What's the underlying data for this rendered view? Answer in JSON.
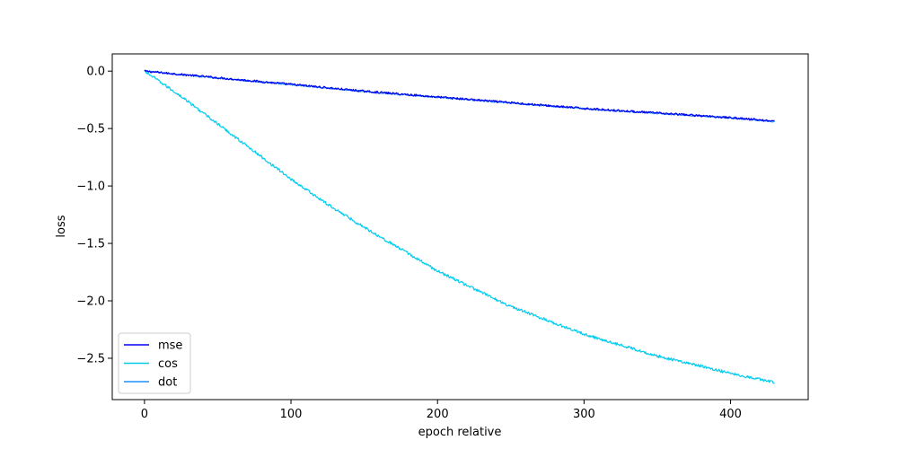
{
  "chart_data": {
    "type": "line",
    "title": "",
    "xlabel": "epoch relative",
    "ylabel": "loss",
    "xlim": [
      -22,
      453
    ],
    "ylim": [
      -2.86,
      0.15
    ],
    "xticks": [
      0,
      100,
      200,
      300,
      400
    ],
    "xtick_labels": [
      "0",
      "100",
      "200",
      "300",
      "400"
    ],
    "yticks": [
      0.0,
      -0.5,
      -1.0,
      -1.5,
      -2.0,
      -2.5
    ],
    "ytick_labels": [
      "0.0",
      "−0.5",
      "−1.0",
      "−1.5",
      "−2.0",
      "−2.5"
    ],
    "grid": false,
    "legend_position": "lower-left",
    "series": [
      {
        "name": "mse",
        "color": "#0000ee",
        "x": [
          0,
          50,
          100,
          150,
          200,
          250,
          300,
          350,
          400,
          430
        ],
        "y": [
          0.0,
          -0.058,
          -0.115,
          -0.175,
          -0.225,
          -0.275,
          -0.325,
          -0.365,
          -0.405,
          -0.435
        ],
        "noise": 0.009
      },
      {
        "name": "cos",
        "color": "#00ccee",
        "x": [
          0,
          25,
          50,
          75,
          100,
          125,
          150,
          200,
          250,
          300,
          350,
          400,
          430
        ],
        "y": [
          0.0,
          -0.22,
          -0.46,
          -0.7,
          -0.94,
          -1.16,
          -1.36,
          -1.74,
          -2.05,
          -2.29,
          -2.48,
          -2.63,
          -2.71
        ],
        "noise": 0.012
      },
      {
        "name": "dot",
        "color": "#1e90ff",
        "x": [
          0,
          50,
          100,
          150,
          200,
          250,
          300,
          350,
          400,
          430
        ],
        "y": [
          0.0,
          -0.06,
          -0.118,
          -0.178,
          -0.228,
          -0.278,
          -0.328,
          -0.368,
          -0.408,
          -0.44
        ],
        "noise": 0.006
      }
    ]
  }
}
